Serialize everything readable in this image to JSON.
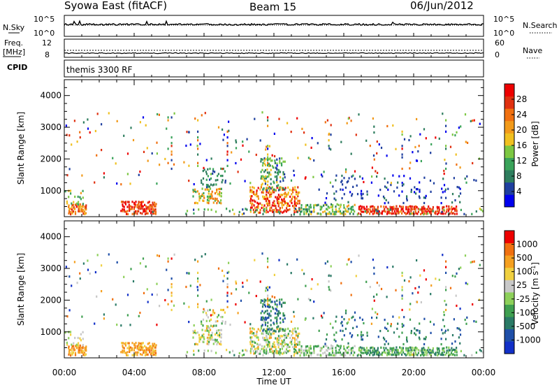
{
  "header": {
    "station": "Syowa East (fitACF)",
    "beam": "Beam 15",
    "date": "06/Jun/2012"
  },
  "top_panels": {
    "nsky_label": "N.Sky",
    "nsearch_label": "N.Search",
    "nsky_ticks": [
      "10^5",
      "10^0"
    ],
    "nsearch_ticks": [
      "10^5",
      "10^0"
    ],
    "freq_label_1": "Freq.",
    "freq_label_2": "[MHz]",
    "freq_ticks": [
      "12",
      "8"
    ],
    "nave_label": "Nave",
    "nave_ticks": [
      "60",
      "0"
    ],
    "cpid_label": "CPID",
    "cpid_text": "themis 3300 RF"
  },
  "colors": {
    "power_scale": [
      "#0000ee",
      "#1f3f9f",
      "#2e7d5e",
      "#3aa35a",
      "#7cc742",
      "#f0c020",
      "#f29a1a",
      "#f07010",
      "#e03010",
      "#ee0000"
    ],
    "velocity_scale": [
      "#1230c8",
      "#1f4fa8",
      "#2a7a66",
      "#3f9f50",
      "#8dd05a",
      "#c8c8c8",
      "#f0d040",
      "#f5a020",
      "#f07010",
      "#ee0000"
    ]
  },
  "chart_data": [
    {
      "type": "heatmap",
      "panel": "power",
      "ylabel": "Slant Range [km]",
      "ylim": [
        180,
        4500
      ],
      "yticks": [
        "1000",
        "2000",
        "3000",
        "4000"
      ],
      "xlim_hours": [
        0,
        24
      ],
      "colorbar_label": "Power [dB]",
      "colorbar_ticks": [
        "4",
        "8",
        "12",
        "16",
        "20",
        "24",
        "28"
      ],
      "colorbar_range": [
        0,
        32
      ],
      "seed": 17
    },
    {
      "type": "heatmap",
      "panel": "velocity",
      "ylabel": "Slant Range [km]",
      "ylim": [
        180,
        4500
      ],
      "yticks": [
        "1000",
        "2000",
        "3000",
        "4000"
      ],
      "xlim_hours": [
        0,
        24
      ],
      "xlabel": "Time UT",
      "xticks": [
        "00:00",
        "04:00",
        "08:00",
        "12:00",
        "16:00",
        "20:00",
        "00:00"
      ],
      "colorbar_label": "Velocity [m s",
      "colorbar_sup": "-1",
      "colorbar_close": "]",
      "colorbar_ticks": [
        "1000",
        "500",
        "100",
        "25",
        "-25",
        "-100",
        "-500",
        "-1000"
      ],
      "seed": 17
    }
  ]
}
